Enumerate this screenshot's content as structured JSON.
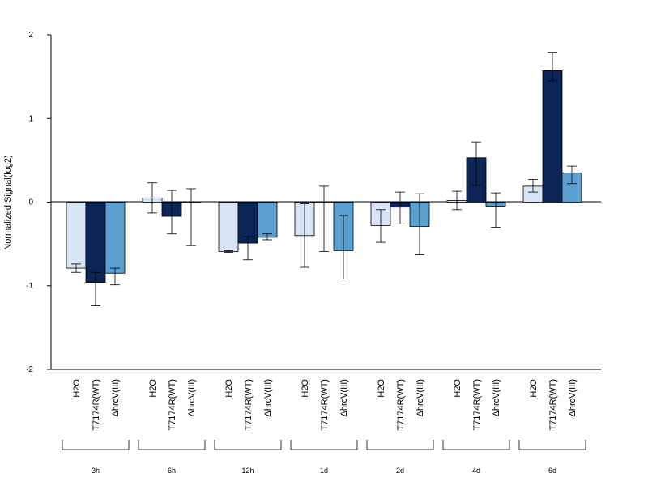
{
  "chart_data": {
    "type": "bar",
    "title": "",
    "ylabel": "Normalized Signal(log2)",
    "ylim": [
      -2,
      2
    ],
    "yticks": [
      "-2",
      "-1",
      "0",
      "1",
      "2"
    ],
    "groups": [
      "3h",
      "6h",
      "12h",
      "1d",
      "2d",
      "4d",
      "6d"
    ],
    "conditions": [
      "H2O",
      "T7174R(WT)",
      "ΔhrcV(III)"
    ],
    "series": [
      {
        "name": "H2O",
        "color": "#d6e4f3",
        "values": [
          -0.79,
          0.05,
          -0.59,
          -0.4,
          -0.28,
          0.02,
          0.19
        ],
        "err_low": [
          -0.84,
          -0.13,
          -0.6,
          -0.78,
          -0.48,
          -0.09,
          0.12
        ],
        "err_high": [
          -0.74,
          0.23,
          -0.58,
          -0.02,
          -0.09,
          0.13,
          0.27
        ]
      },
      {
        "name": "T7174R(WT)",
        "color": "#0b2557",
        "values": [
          -0.96,
          -0.17,
          -0.49,
          0.0,
          -0.06,
          0.53,
          1.57
        ],
        "err_low": [
          -1.24,
          -0.38,
          -0.69,
          -0.59,
          -0.26,
          0.2,
          1.45
        ],
        "err_high": [
          -0.84,
          0.14,
          -0.41,
          0.19,
          0.12,
          0.72,
          1.79
        ]
      },
      {
        "name": "ΔhrcV(III)",
        "color": "#5b9fd0",
        "values": [
          -0.85,
          0.0,
          -0.42,
          -0.58,
          -0.29,
          -0.05,
          0.35
        ],
        "err_low": [
          -0.99,
          -0.52,
          -0.45,
          -0.92,
          -0.63,
          -0.3,
          0.22
        ],
        "err_high": [
          -0.79,
          0.16,
          -0.38,
          -0.16,
          0.1,
          0.11,
          0.43
        ]
      }
    ]
  }
}
